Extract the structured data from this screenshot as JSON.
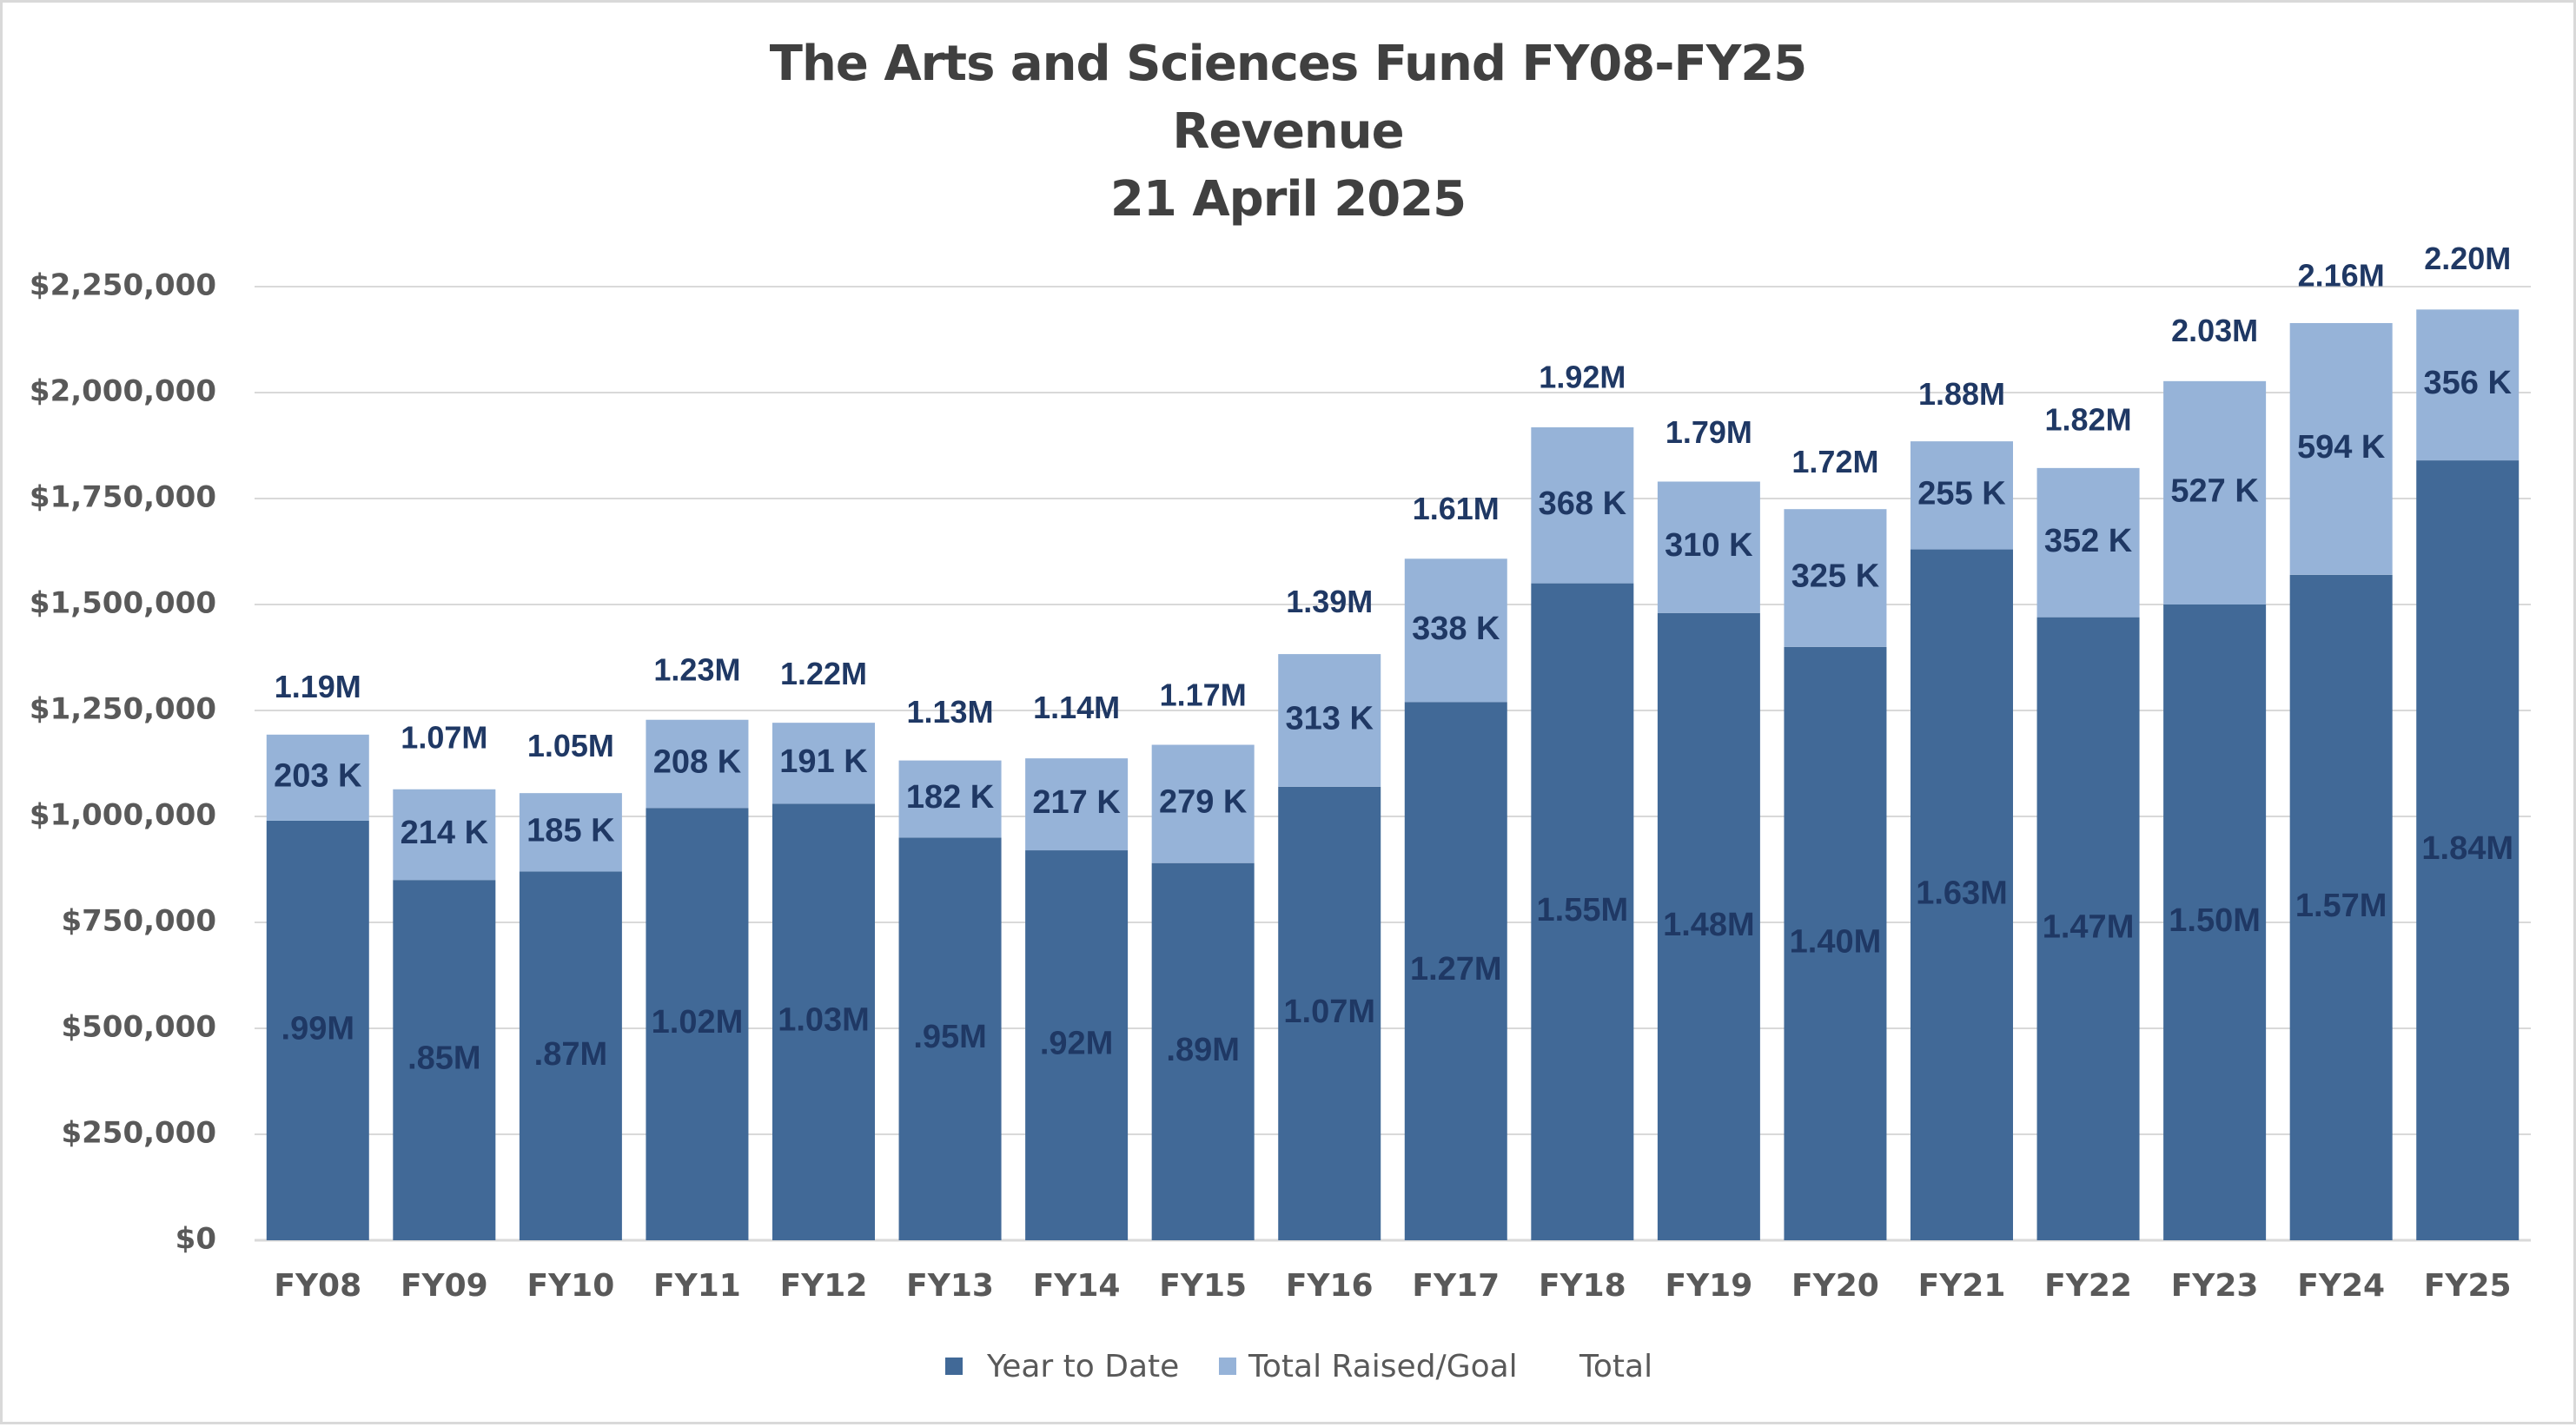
{
  "chart_data": {
    "type": "bar",
    "stacked": true,
    "title": "The Arts and Sciences Fund FY08-FY25",
    "subtitle": [
      "Revenue",
      "21 April 2025"
    ],
    "categories": [
      "FY08",
      "FY09",
      "FY10",
      "FY11",
      "FY12",
      "FY13",
      "FY14",
      "FY15",
      "FY16",
      "FY17",
      "FY18",
      "FY19",
      "FY20",
      "FY21",
      "FY22",
      "FY23",
      "FY24",
      "FY25"
    ],
    "series": [
      {
        "name": "Year to Date",
        "color": "#416997",
        "values": [
          990000,
          850000,
          870000,
          1020000,
          1030000,
          950000,
          920000,
          890000,
          1070000,
          1270000,
          1550000,
          1480000,
          1400000,
          1630000,
          1470000,
          1500000,
          1570000,
          1840000
        ],
        "labels": [
          ".99M",
          ".85M",
          ".87M",
          "1.02M",
          "1.03M",
          ".95M",
          ".92M",
          ".89M",
          "1.07M",
          "1.27M",
          "1.55M",
          "1.48M",
          "1.40M",
          "1.63M",
          "1.47M",
          "1.50M",
          "1.57M",
          "1.84M"
        ]
      },
      {
        "name": "Total Raised/Goal",
        "color": "#96b3d8",
        "values": [
          203000,
          214000,
          185000,
          208000,
          191000,
          182000,
          217000,
          279000,
          313000,
          338000,
          368000,
          310000,
          325000,
          255000,
          352000,
          527000,
          594000,
          356000
        ],
        "labels": [
          "203 K",
          "214 K",
          "185 K",
          "208 K",
          "191 K",
          "182 K",
          "217 K",
          "279 K",
          "313 K",
          "338 K",
          "368 K",
          "310 K",
          "325 K",
          "255 K",
          "352 K",
          "527 K",
          "594 K",
          "356 K"
        ]
      },
      {
        "name": "Total",
        "color": "none",
        "values": [
          1190000,
          1070000,
          1050000,
          1230000,
          1220000,
          1130000,
          1140000,
          1170000,
          1390000,
          1610000,
          1920000,
          1790000,
          1720000,
          1880000,
          1820000,
          2030000,
          2160000,
          2200000
        ],
        "labels": [
          "1.19M",
          "1.07M",
          "1.05M",
          "1.23M",
          "1.22M",
          "1.13M",
          "1.14M",
          "1.17M",
          "1.39M",
          "1.61M",
          "1.92M",
          "1.79M",
          "1.72M",
          "1.88M",
          "1.82M",
          "2.03M",
          "2.16M",
          "2.20M"
        ]
      }
    ],
    "yticks": [
      0,
      250000,
      500000,
      750000,
      1000000,
      1250000,
      1500000,
      1750000,
      2000000,
      2250000
    ],
    "ytick_labels": [
      "$0",
      "$250,000",
      "$500,000",
      "$750,000",
      "$1,000,000",
      "$1,250,000",
      "$1,500,000",
      "$1,750,000",
      "$2,000,000",
      "$2,250,000"
    ],
    "ylim": [
      0,
      2250000
    ],
    "grid": true,
    "legend_position": "bottom",
    "gridline_color": "#d9d9d9",
    "axis_text_color": "#595959",
    "label_color": "#1f3864"
  }
}
